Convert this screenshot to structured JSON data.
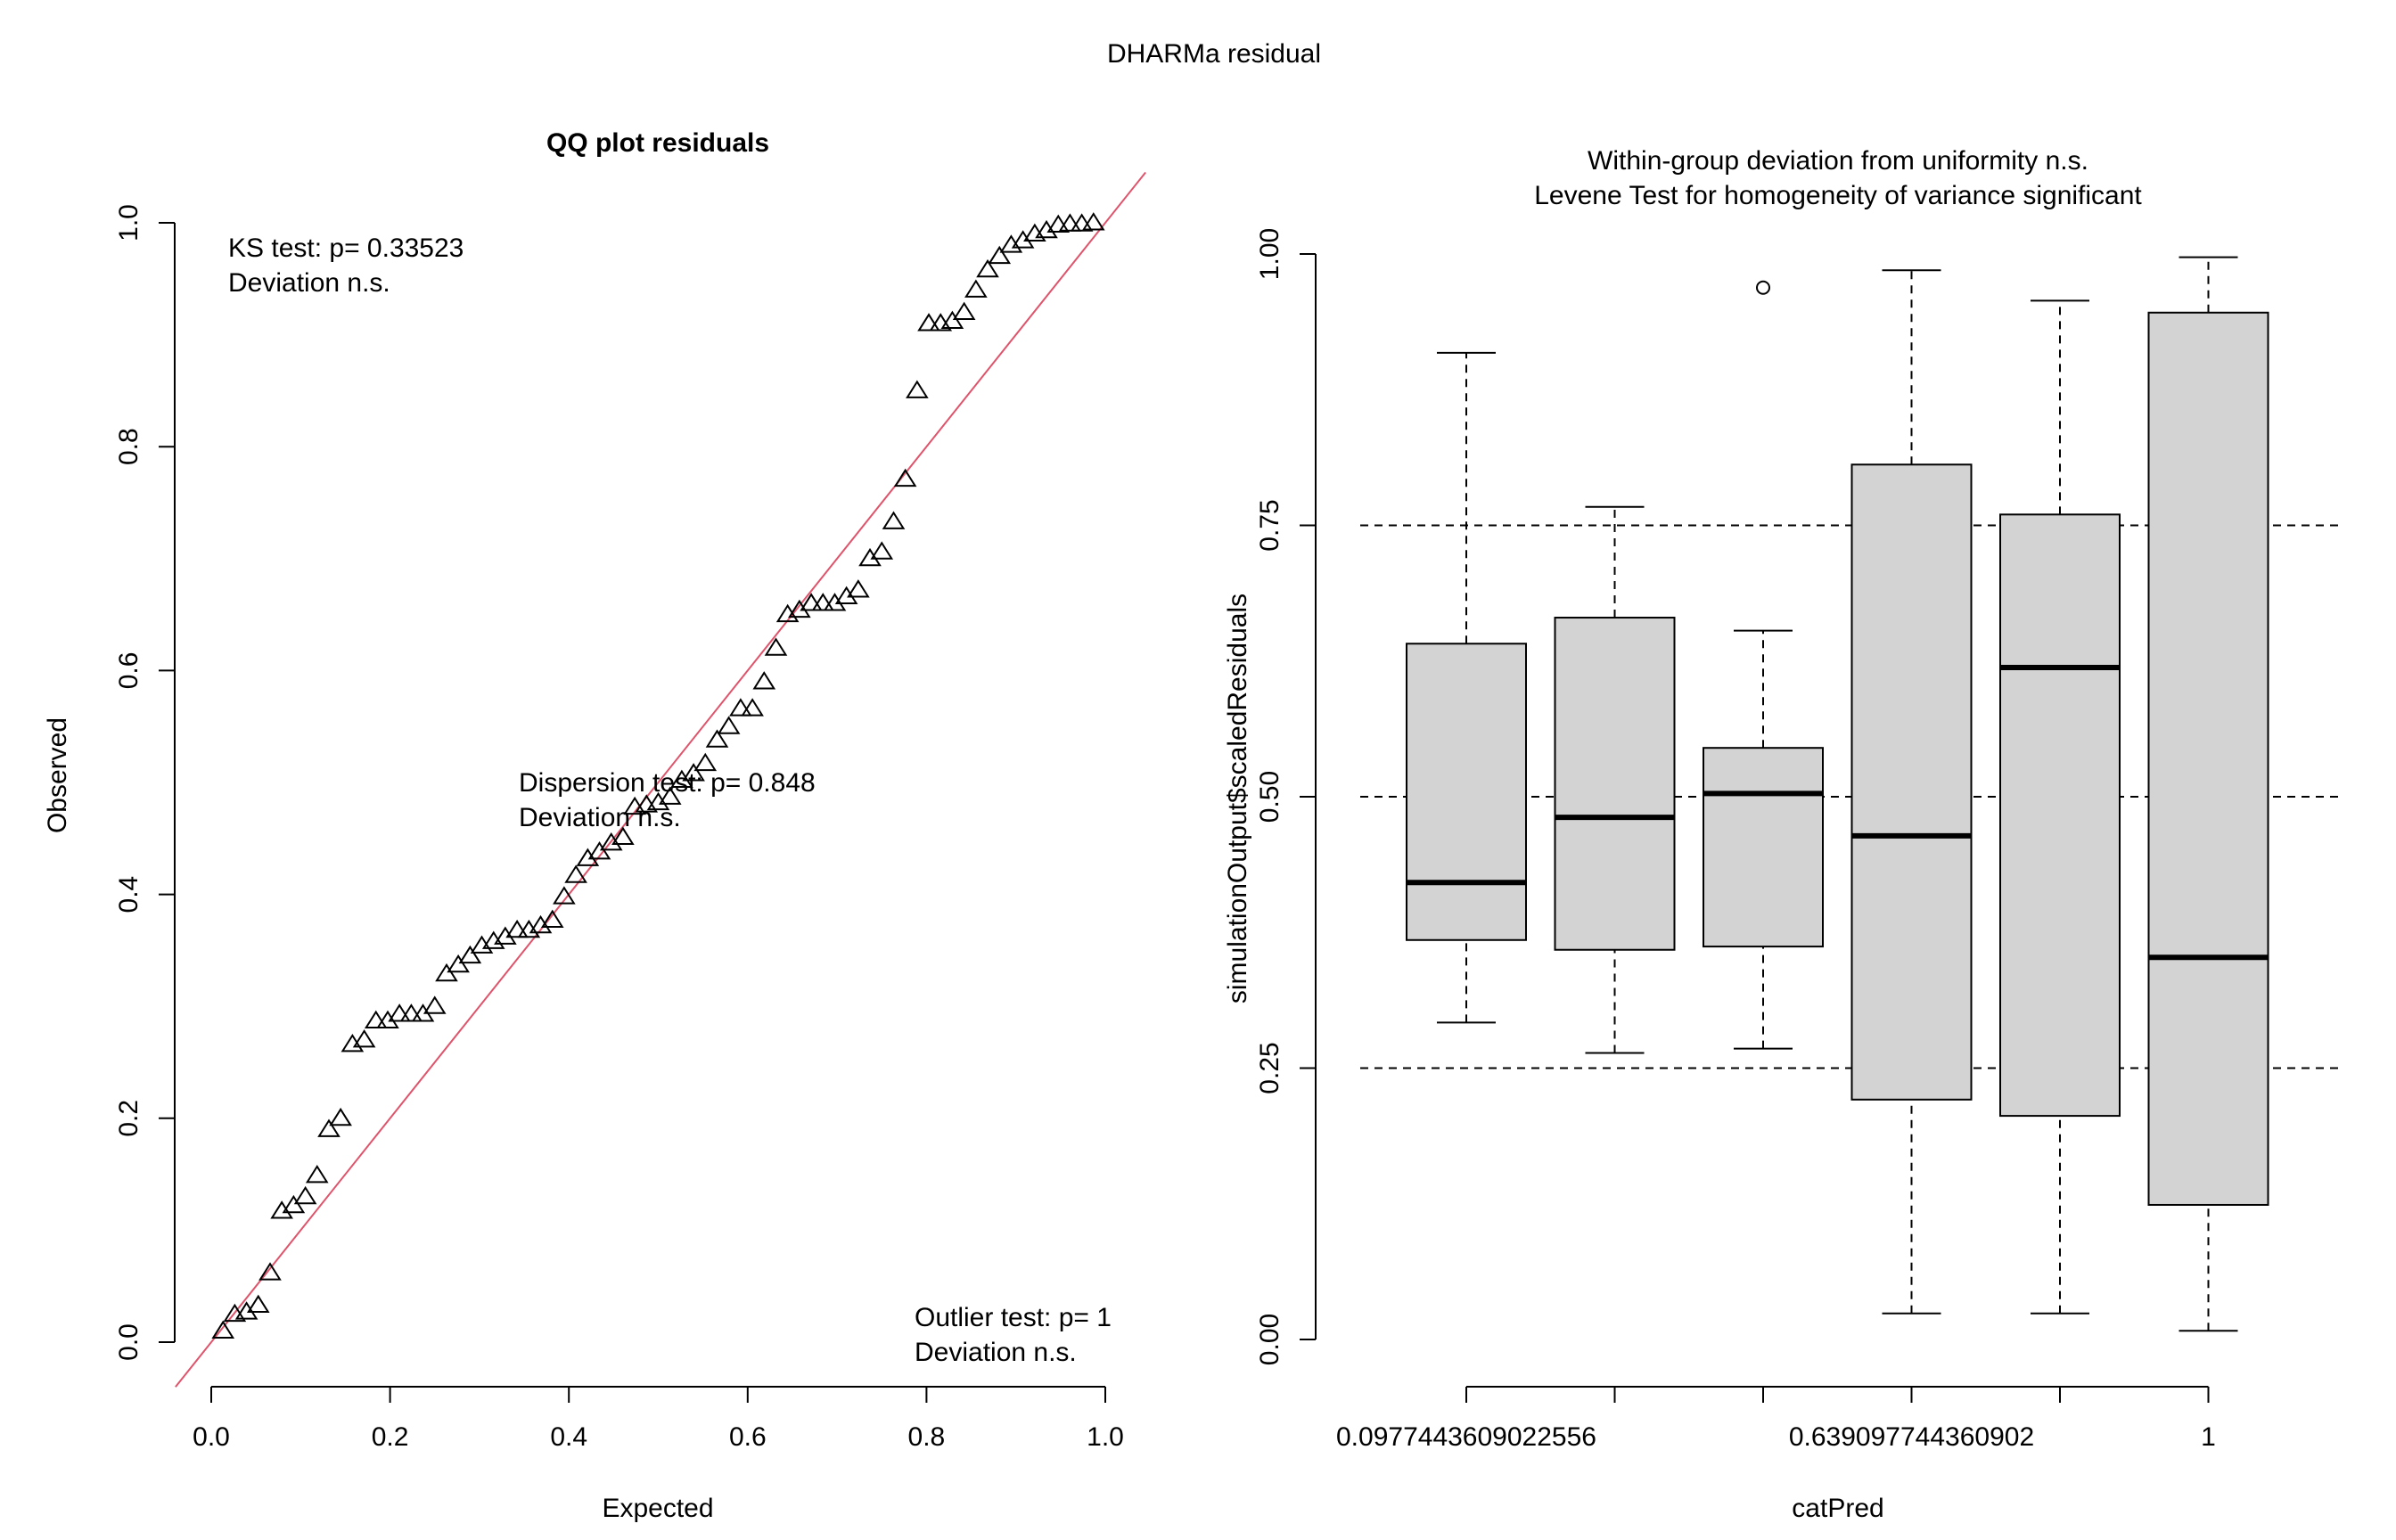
{
  "figure": {
    "title": "DHARMa residual"
  },
  "qq_plot": {
    "title": "QQ plot residuals",
    "xlabel": "Expected",
    "ylabel": "Observed",
    "ks_test": "KS test: p= 0.33523",
    "ks_deviation": "Deviation  n.s.",
    "dispersion_test": "Dispersion test: p= 0.848",
    "dispersion_deviation": "Deviation  n.s.",
    "outlier_test": "Outlier test: p= 1",
    "outlier_deviation": "Deviation  n.s.",
    "x_ticks": [
      "0.0",
      "0.2",
      "0.4",
      "0.6",
      "0.8",
      "1.0"
    ],
    "y_ticks": [
      "0.0",
      "0.2",
      "0.4",
      "0.6",
      "0.8",
      "1.0"
    ],
    "line_color": "#DF536B"
  },
  "boxplot": {
    "title_line1": "Within-group deviation from uniformity n.s.",
    "title_line2": "Levene Test for homogeneity of variance significant",
    "title_line2_color": "#FF0000",
    "xlabel": "catPred",
    "ylabel": "simulationOutput$scaledResiduals",
    "x_tick_labels": [
      "0.0977443609022556",
      "",
      "",
      "0.639097744360902",
      "",
      "1"
    ],
    "y_ticks": [
      "0.00",
      "0.25",
      "0.50",
      "0.75",
      "1.00"
    ],
    "box_fill": "#D3D3D3"
  },
  "chart_data": [
    {
      "type": "scatter",
      "title": "QQ plot residuals",
      "xlabel": "Expected",
      "ylabel": "Observed",
      "xlim": [
        0,
        1
      ],
      "ylim": [
        0,
        1
      ],
      "reference_line": "y = x",
      "series": [
        {
          "marker": "triangle",
          "x": [
            0.0132,
            0.0263,
            0.0395,
            0.0526,
            0.0658,
            0.0789,
            0.0921,
            0.1053,
            0.1184,
            0.1316,
            0.1447,
            0.1579,
            0.1711,
            0.1842,
            0.1974,
            0.2105,
            0.2237,
            0.2368,
            0.25,
            0.2632,
            0.2763,
            0.2895,
            0.3026,
            0.3158,
            0.3289,
            0.3421,
            0.3553,
            0.3684,
            0.3816,
            0.3947,
            0.4079,
            0.4211,
            0.4342,
            0.4474,
            0.4605,
            0.4737,
            0.4868,
            0.5,
            0.5132,
            0.5263,
            0.5395,
            0.5526,
            0.5658,
            0.5789,
            0.5921,
            0.6053,
            0.6184,
            0.6316,
            0.6447,
            0.6579,
            0.6711,
            0.6842,
            0.6974,
            0.7105,
            0.7237,
            0.7368,
            0.75,
            0.7632,
            0.7763,
            0.7895,
            0.8026,
            0.8158,
            0.8289,
            0.8421,
            0.8553,
            0.8684,
            0.8816,
            0.8947,
            0.9079,
            0.9211,
            0.9342,
            0.9474,
            0.9605,
            0.9737,
            0.9868
          ],
          "y": [
            0.01,
            0.025,
            0.027,
            0.033,
            0.062,
            0.117,
            0.122,
            0.13,
            0.149,
            0.19,
            0.2,
            0.266,
            0.27,
            0.287,
            0.287,
            0.293,
            0.293,
            0.293,
            0.3,
            0.329,
            0.337,
            0.345,
            0.354,
            0.358,
            0.362,
            0.368,
            0.368,
            0.372,
            0.377,
            0.398,
            0.417,
            0.432,
            0.438,
            0.446,
            0.451,
            0.478,
            0.48,
            0.482,
            0.487,
            0.502,
            0.508,
            0.517,
            0.538,
            0.55,
            0.566,
            0.566,
            0.59,
            0.62,
            0.65,
            0.654,
            0.66,
            0.66,
            0.66,
            0.666,
            0.672,
            0.7,
            0.706,
            0.733,
            0.771,
            0.85,
            0.91,
            0.91,
            0.912,
            0.92,
            0.94,
            0.958,
            0.97,
            0.98,
            0.984,
            0.99,
            0.993,
            0.998,
            0.999,
            0.999,
            1.0
          ]
        }
      ],
      "annotations": [
        "KS test: p= 0.33523",
        "Deviation  n.s.",
        "Dispersion test: p= 0.848",
        "Deviation  n.s.",
        "Outlier test: p= 1",
        "Deviation  n.s."
      ]
    },
    {
      "type": "boxplot",
      "title": "Within-group deviation from uniformity n.s.",
      "subtitle": "Levene Test for homogeneity of variance significant",
      "xlabel": "catPred",
      "ylabel": "simulationOutput$scaledResiduals",
      "ylim": [
        0,
        1
      ],
      "reference_lines": [
        0.25,
        0.5,
        0.75
      ],
      "groups": [
        {
          "label": "0.0977443609022556",
          "whisker_low": 0.292,
          "q1": 0.368,
          "median": 0.421,
          "q3": 0.641,
          "whisker_high": 0.909,
          "outliers": []
        },
        {
          "label": "",
          "whisker_low": 0.264,
          "q1": 0.359,
          "median": 0.481,
          "q3": 0.665,
          "whisker_high": 0.767,
          "outliers": []
        },
        {
          "label": "",
          "whisker_low": 0.268,
          "q1": 0.362,
          "median": 0.503,
          "q3": 0.545,
          "whisker_high": 0.653,
          "outliers": [
            0.969
          ]
        },
        {
          "label": "0.639097744360902",
          "whisker_low": 0.024,
          "q1": 0.221,
          "median": 0.464,
          "q3": 0.806,
          "whisker_high": 0.985,
          "outliers": []
        },
        {
          "label": "",
          "whisker_low": 0.024,
          "q1": 0.206,
          "median": 0.619,
          "q3": 0.76,
          "whisker_high": 0.957,
          "outliers": []
        },
        {
          "label": "1",
          "whisker_low": 0.008,
          "q1": 0.124,
          "median": 0.352,
          "q3": 0.946,
          "whisker_high": 0.997,
          "outliers": []
        }
      ]
    }
  ]
}
